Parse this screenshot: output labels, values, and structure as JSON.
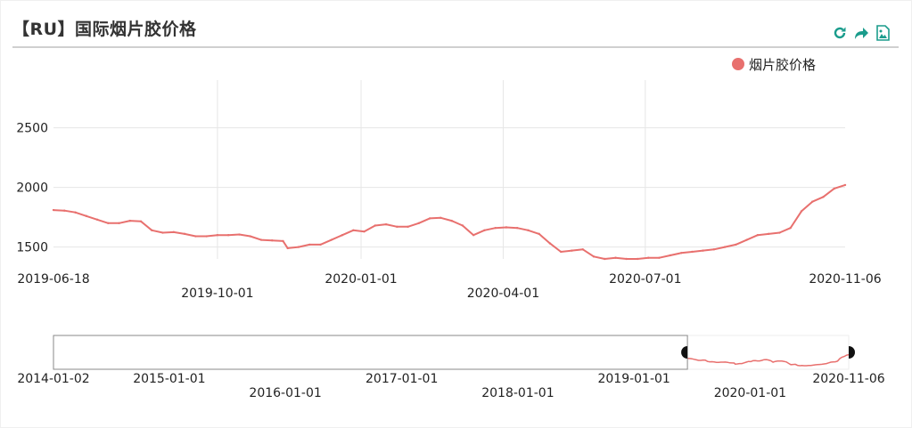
{
  "header": {
    "title": "【RU】国际烟片胶价格"
  },
  "toolbox": {
    "icons": [
      "refresh-icon",
      "share-icon",
      "save-image-icon"
    ],
    "color": "#1a9c8c"
  },
  "chart_data": {
    "type": "line",
    "title": "【RU】国际烟片胶价格",
    "xlabel": "",
    "ylabel": "",
    "legend": {
      "position": "top-right"
    },
    "grid": true,
    "series": [
      {
        "name": "烟片胶价格",
        "color": "#e8706e",
        "points": [
          [
            "2019-06-18",
            1810
          ],
          [
            "2019-06-25",
            1805
          ],
          [
            "2019-07-02",
            1790
          ],
          [
            "2019-07-09",
            1760
          ],
          [
            "2019-07-16",
            1730
          ],
          [
            "2019-07-23",
            1700
          ],
          [
            "2019-07-30",
            1700
          ],
          [
            "2019-08-06",
            1720
          ],
          [
            "2019-08-13",
            1715
          ],
          [
            "2019-08-20",
            1640
          ],
          [
            "2019-08-27",
            1620
          ],
          [
            "2019-09-03",
            1625
          ],
          [
            "2019-09-10",
            1610
          ],
          [
            "2019-09-17",
            1590
          ],
          [
            "2019-09-24",
            1590
          ],
          [
            "2019-10-01",
            1600
          ],
          [
            "2019-10-08",
            1600
          ],
          [
            "2019-10-15",
            1605
          ],
          [
            "2019-10-22",
            1590
          ],
          [
            "2019-10-29",
            1560
          ],
          [
            "2019-11-05",
            1555
          ],
          [
            "2019-11-12",
            1550
          ],
          [
            "2019-11-15",
            1490
          ],
          [
            "2019-11-22",
            1500
          ],
          [
            "2019-11-29",
            1520
          ],
          [
            "2019-12-06",
            1520
          ],
          [
            "2019-12-13",
            1560
          ],
          [
            "2019-12-20",
            1600
          ],
          [
            "2019-12-27",
            1640
          ],
          [
            "2020-01-03",
            1630
          ],
          [
            "2020-01-10",
            1680
          ],
          [
            "2020-01-17",
            1690
          ],
          [
            "2020-01-24",
            1670
          ],
          [
            "2020-01-31",
            1670
          ],
          [
            "2020-02-07",
            1700
          ],
          [
            "2020-02-14",
            1740
          ],
          [
            "2020-02-21",
            1745
          ],
          [
            "2020-02-28",
            1720
          ],
          [
            "2020-03-06",
            1680
          ],
          [
            "2020-03-13",
            1600
          ],
          [
            "2020-03-20",
            1640
          ],
          [
            "2020-03-27",
            1660
          ],
          [
            "2020-04-03",
            1665
          ],
          [
            "2020-04-10",
            1660
          ],
          [
            "2020-04-17",
            1640
          ],
          [
            "2020-04-24",
            1610
          ],
          [
            "2020-05-01",
            1530
          ],
          [
            "2020-05-08",
            1460
          ],
          [
            "2020-05-15",
            1470
          ],
          [
            "2020-05-22",
            1480
          ],
          [
            "2020-05-29",
            1420
          ],
          [
            "2020-06-05",
            1400
          ],
          [
            "2020-06-12",
            1410
          ],
          [
            "2020-06-19",
            1400
          ],
          [
            "2020-06-26",
            1400
          ],
          [
            "2020-07-03",
            1410
          ],
          [
            "2020-07-10",
            1410
          ],
          [
            "2020-07-17",
            1430
          ],
          [
            "2020-07-24",
            1450
          ],
          [
            "2020-07-31",
            1460
          ],
          [
            "2020-08-07",
            1470
          ],
          [
            "2020-08-14",
            1480
          ],
          [
            "2020-08-21",
            1500
          ],
          [
            "2020-08-28",
            1520
          ],
          [
            "2020-09-04",
            1560
          ],
          [
            "2020-09-11",
            1600
          ],
          [
            "2020-09-18",
            1610
          ],
          [
            "2020-09-25",
            1620
          ],
          [
            "2020-10-02",
            1660
          ],
          [
            "2020-10-09",
            1800
          ],
          [
            "2020-10-16",
            1880
          ],
          [
            "2020-10-23",
            1920
          ],
          [
            "2020-10-30",
            1990
          ],
          [
            "2020-11-06",
            2020
          ]
        ]
      }
    ],
    "x_axis": {
      "type": "time",
      "range": [
        "2019-06-18",
        "2020-11-06"
      ],
      "tick_labels": [
        "2019-06-18",
        "2019-10-01",
        "2020-01-01",
        "2020-04-01",
        "2020-07-01",
        "2020-11-06"
      ]
    },
    "y_axis": {
      "range": [
        1400,
        2900
      ],
      "tick_values": [
        1500,
        2000,
        2500
      ],
      "tick_labels": [
        "1500",
        "2000",
        "2500"
      ]
    },
    "data_zoom": {
      "range": [
        "2014-01-02",
        "2020-11-06"
      ],
      "selected": [
        "2019-06-18",
        "2020-11-06"
      ],
      "tick_labels": [
        "2014-01-02",
        "2015-01-01",
        "2016-01-01",
        "2017-01-01",
        "2018-01-01",
        "2019-01-01",
        "2020-01-01",
        "2020-11-06"
      ]
    }
  }
}
